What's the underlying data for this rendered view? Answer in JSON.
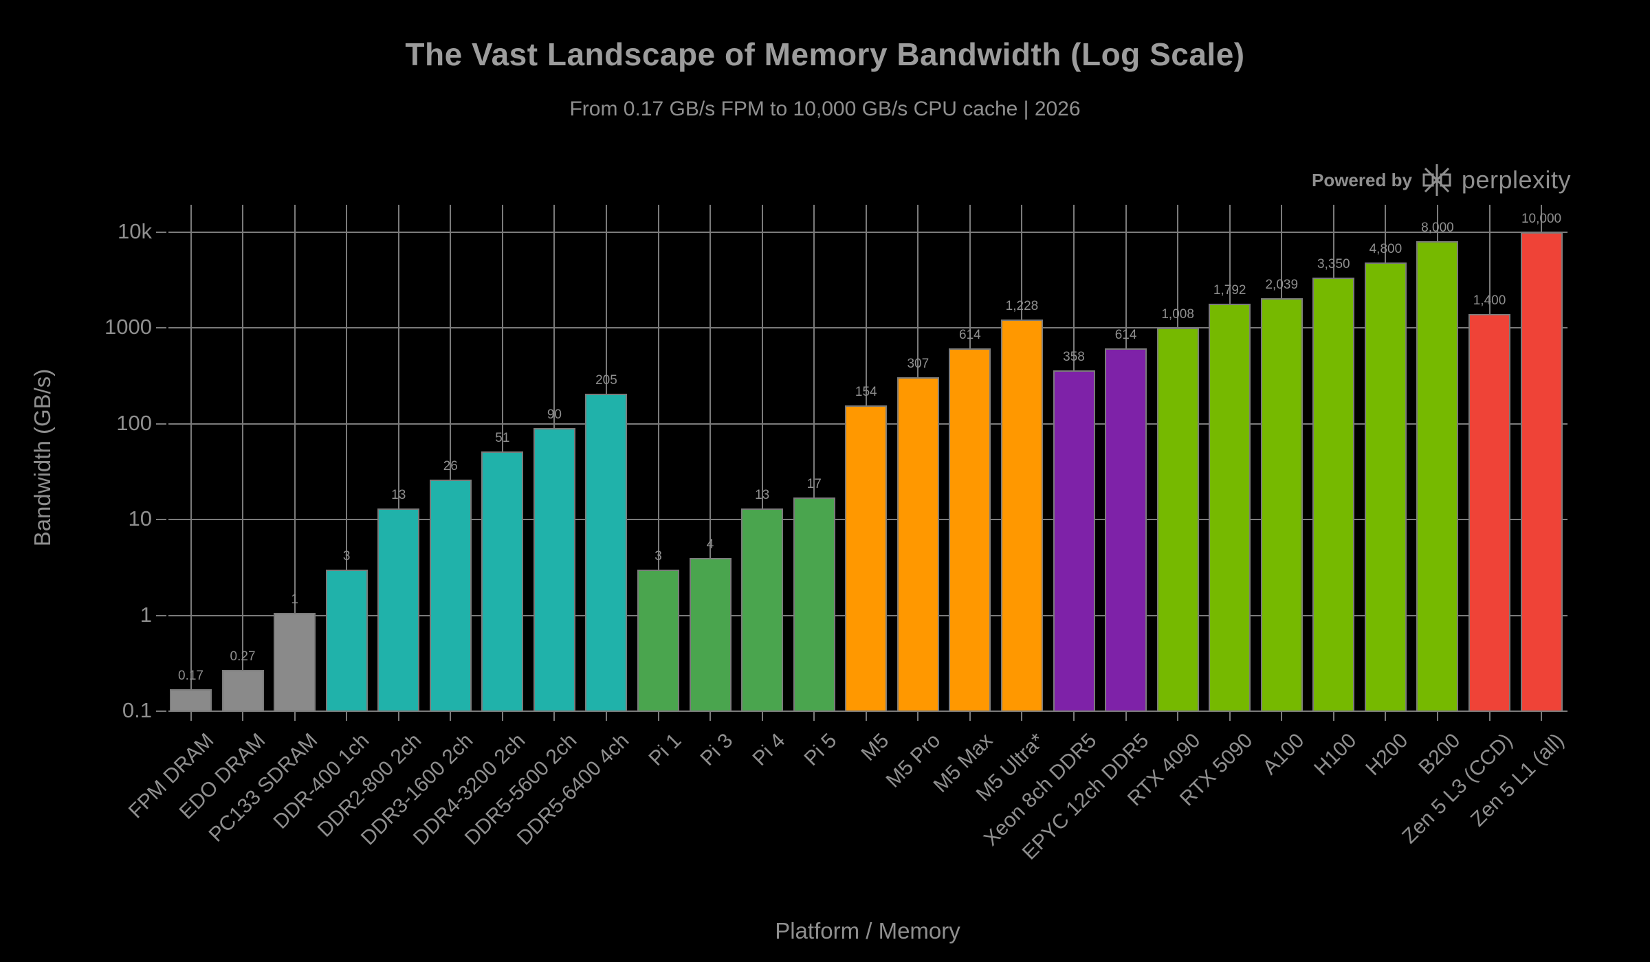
{
  "title": "The Vast Landscape of Memory Bandwidth (Log Scale)",
  "subtitle": "From 0.17 GB/s FPM to 10,000 GB/s CPU cache | 2026",
  "branding": {
    "powered_by": "Powered by",
    "brand": "perplexity"
  },
  "colors": {
    "background": "#000000",
    "grid": "#7b7b7b",
    "text": "#8f8f8f",
    "title_text": "#9c9c9c",
    "legacy_dram": "#8a8a8a",
    "ddr_teal": "#20b2aa",
    "raspberry_pi_green": "#4aa54e",
    "apple_m5_orange": "#ff9800",
    "server_cpu_purple": "#7e22a8",
    "nvidia_gpu_lime": "#76b900",
    "amd_cache_red": "#ef4337"
  },
  "chart_data": {
    "type": "bar",
    "title": "The Vast Landscape of Memory Bandwidth (Log Scale)",
    "subtitle": "From 0.17 GB/s FPM to 10,000 GB/s CPU cache | 2026",
    "xlabel": "Platform / Memory",
    "ylabel": "Bandwidth (GB/s)",
    "yscale": "log",
    "ylim": [
      0.1,
      10000
    ],
    "ytick_labels": [
      "0.1",
      "1",
      "10",
      "100",
      "1000",
      "10k"
    ],
    "grid": true,
    "legend": "none",
    "categories": [
      "FPM DRAM",
      "EDO DRAM",
      "PC133 SDRAM",
      "DDR-400 1ch",
      "DDR2-800 2ch",
      "DDR3-1600 2ch",
      "DDR4-3200 2ch",
      "DDR5-5600 2ch",
      "DDR5-6400 4ch",
      "Pi 1",
      "Pi 3",
      "Pi 4",
      "Pi 5",
      "M5",
      "M5 Pro",
      "M5 Max",
      "M5 Ultra*",
      "Xeon 8ch DDR5",
      "EPYC 12ch DDR5",
      "RTX 4090",
      "RTX 5090",
      "A100",
      "H100",
      "H200",
      "B200",
      "Zen 5 L3 (CCD)",
      "Zen 5 L1 (all)"
    ],
    "values": [
      0.17,
      0.27,
      1.06,
      3,
      13,
      26,
      51,
      90,
      205,
      3,
      4,
      13,
      17,
      154,
      307,
      614,
      1228,
      358,
      614,
      1008,
      1792,
      2039,
      3350,
      4800,
      8000,
      1400,
      10000
    ],
    "value_labels": [
      "0.17",
      "0.27",
      "1",
      "3",
      "13",
      "26",
      "51",
      "90",
      "205",
      "3",
      "4",
      "13",
      "17",
      "154",
      "307",
      "614",
      "1,228",
      "358",
      "614",
      "1,008",
      "1,792",
      "2,039",
      "3,350",
      "4,800",
      "8,000",
      "1,400",
      "10,000"
    ],
    "bar_colors": [
      "#8a8a8a",
      "#8a8a8a",
      "#8a8a8a",
      "#20b2aa",
      "#20b2aa",
      "#20b2aa",
      "#20b2aa",
      "#20b2aa",
      "#20b2aa",
      "#4aa54e",
      "#4aa54e",
      "#4aa54e",
      "#4aa54e",
      "#ff9800",
      "#ff9800",
      "#ff9800",
      "#ff9800",
      "#7e22a8",
      "#7e22a8",
      "#76b900",
      "#76b900",
      "#76b900",
      "#76b900",
      "#76b900",
      "#76b900",
      "#ef4337",
      "#ef4337"
    ]
  }
}
